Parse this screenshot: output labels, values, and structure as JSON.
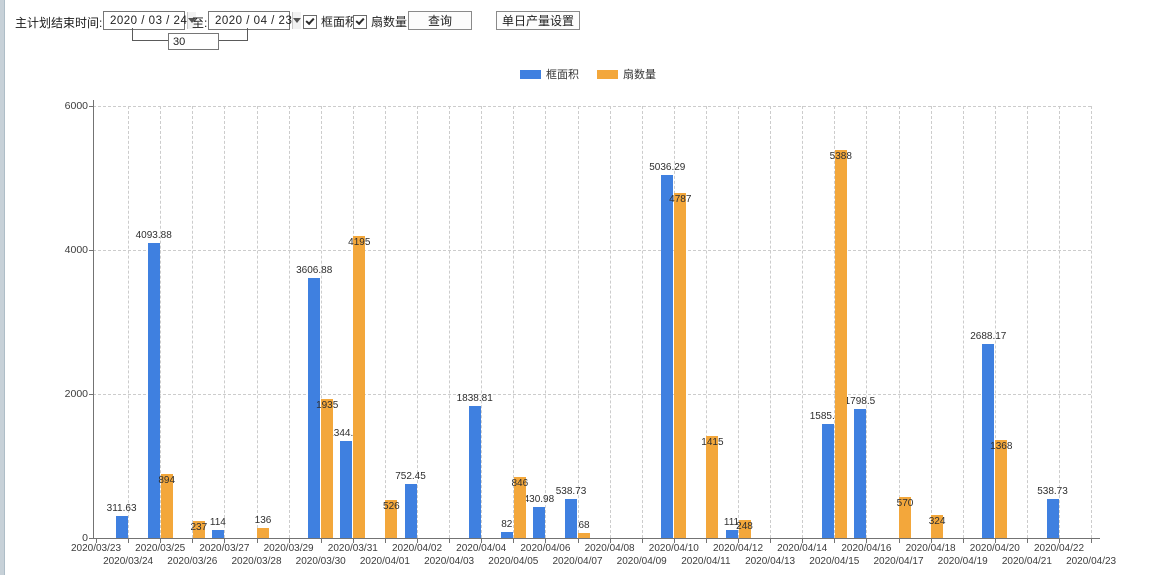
{
  "toolbar": {
    "plan_end_label": "主计划结束时间:",
    "date_from": "2020 / 03 / 24",
    "to_label": "至:",
    "date_to": "2020 / 04 / 23",
    "days_value": "30",
    "checkbox_frame_area_label": "框面积",
    "checkbox_sash_count_label": "扇数量",
    "query_button_label": "查询",
    "daily_output_button_label": "单日产量设置"
  },
  "chart_data": {
    "type": "bar",
    "title": "",
    "xlabel": "",
    "ylabel": "",
    "ylim": [
      0,
      6000
    ],
    "yticks": [
      0,
      2000,
      4000,
      6000
    ],
    "grid": true,
    "legend_position": "top",
    "categories": [
      "2020/03/23",
      "2020/03/24",
      "2020/03/25",
      "2020/03/26",
      "2020/03/27",
      "2020/03/28",
      "2020/03/29",
      "2020/03/30",
      "2020/03/31",
      "2020/04/01",
      "2020/04/02",
      "2020/04/03",
      "2020/04/04",
      "2020/04/05",
      "2020/04/06",
      "2020/04/07",
      "2020/04/08",
      "2020/04/09",
      "2020/04/10",
      "2020/04/11",
      "2020/04/12",
      "2020/04/13",
      "2020/04/14",
      "2020/04/15",
      "2020/04/16",
      "2020/04/17",
      "2020/04/18",
      "2020/04/19",
      "2020/04/20",
      "2020/04/21",
      "2020/04/22",
      "2020/04/23"
    ],
    "series": [
      {
        "name": "框面积",
        "color": "#3f80e0",
        "values": [
          null,
          311.63,
          4093.88,
          null,
          114,
          null,
          null,
          3606.88,
          1344.95,
          null,
          752.45,
          null,
          1838.81,
          82,
          430.98,
          538.73,
          null,
          null,
          5036.29,
          null,
          111,
          null,
          null,
          1585.96,
          1798.5,
          null,
          null,
          null,
          2688.17,
          null,
          538.73,
          null
        ]
      },
      {
        "name": "扇数量",
        "color": "#f3a73b",
        "values": [
          null,
          null,
          894,
          237,
          null,
          136,
          null,
          1935,
          4195,
          526,
          null,
          null,
          null,
          846,
          null,
          68,
          null,
          null,
          4787,
          1415,
          248,
          null,
          null,
          5388,
          null,
          570,
          324,
          null,
          1368,
          null,
          null,
          null
        ]
      }
    ]
  }
}
